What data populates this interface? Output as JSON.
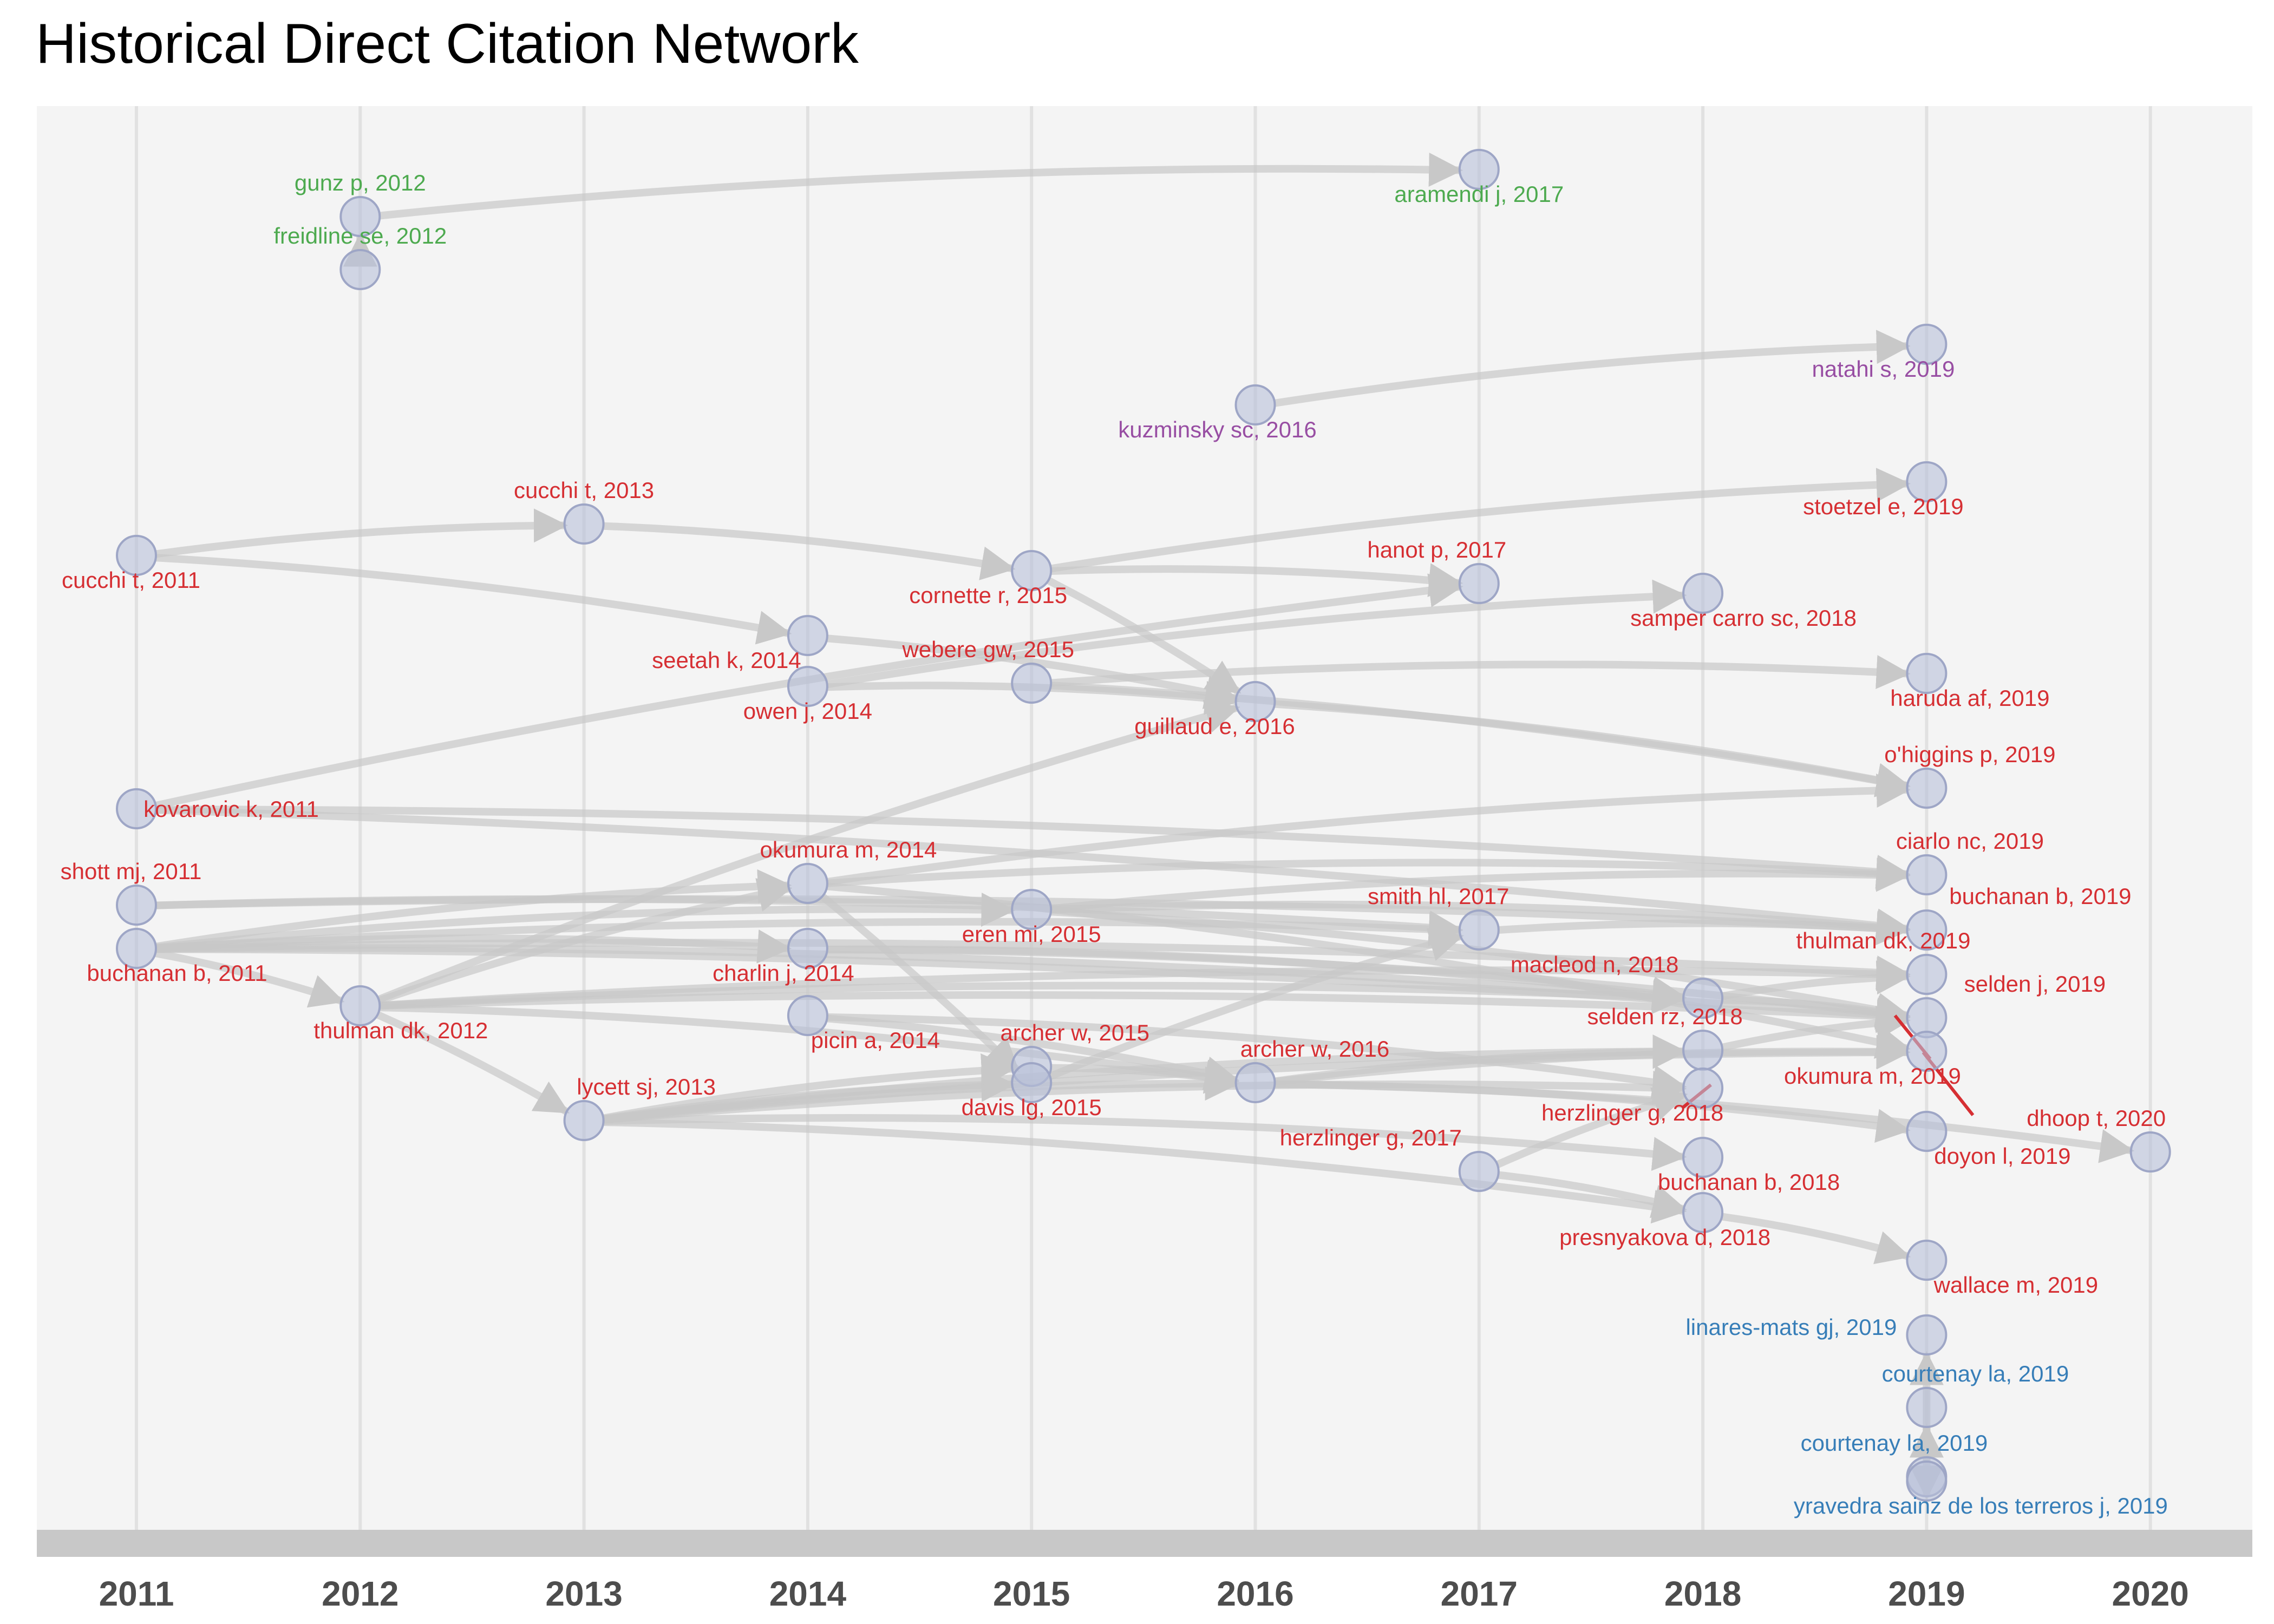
{
  "title": "Historical Direct Citation Network",
  "colors": {
    "background": "#f4f4f4",
    "gridline": "#e1e1e1",
    "timeline_bar": "#c8c8c8",
    "edge": "#c8c8c8",
    "node_fill": "#b8bfd9",
    "node_stroke": "#9ea6c6",
    "cluster_red": "#d62f33",
    "cluster_green": "#4daa4f",
    "cluster_purple": "#984ea3",
    "cluster_blue": "#377eb8"
  },
  "years": [
    "2011",
    "2012",
    "2013",
    "2014",
    "2015",
    "2016",
    "2017",
    "2018",
    "2019",
    "2020"
  ],
  "nodes": [
    {
      "id": "gunz2012",
      "label": "gunz p, 2012",
      "year": 2012,
      "cluster": "green"
    },
    {
      "id": "freidline2012",
      "label": "freidline se, 2012",
      "year": 2012,
      "cluster": "green"
    },
    {
      "id": "aramendi2017",
      "label": "aramendi j, 2017",
      "year": 2017,
      "cluster": "green"
    },
    {
      "id": "kuzminsky2016",
      "label": "kuzminsky sc, 2016",
      "year": 2016,
      "cluster": "purple"
    },
    {
      "id": "natahi2019",
      "label": "natahi s, 2019",
      "year": 2019,
      "cluster": "purple"
    },
    {
      "id": "cucchi2011",
      "label": "cucchi t, 2011",
      "year": 2011,
      "cluster": "red"
    },
    {
      "id": "cucchi2013",
      "label": "cucchi t, 2013",
      "year": 2013,
      "cluster": "red"
    },
    {
      "id": "stoetzel2019",
      "label": "stoetzel e, 2019",
      "year": 2019,
      "cluster": "red"
    },
    {
      "id": "cornette2015",
      "label": "cornette r, 2015",
      "year": 2015,
      "cluster": "red"
    },
    {
      "id": "hanot2017",
      "label": "hanot p, 2017",
      "year": 2017,
      "cluster": "red"
    },
    {
      "id": "samper2018",
      "label": "samper carro sc, 2018",
      "year": 2018,
      "cluster": "red"
    },
    {
      "id": "seetah2014",
      "label": "seetah k, 2014",
      "year": 2014,
      "cluster": "red"
    },
    {
      "id": "webere2015",
      "label": "webere gw, 2015",
      "year": 2015,
      "cluster": "red"
    },
    {
      "id": "owen2014",
      "label": "owen j, 2014",
      "year": 2014,
      "cluster": "red"
    },
    {
      "id": "guillaud2016",
      "label": "guillaud e, 2016",
      "year": 2016,
      "cluster": "red"
    },
    {
      "id": "haruda2019",
      "label": "haruda af, 2019",
      "year": 2019,
      "cluster": "red"
    },
    {
      "id": "ohiggins2019",
      "label": "o'higgins p, 2019",
      "year": 2019,
      "cluster": "red"
    },
    {
      "id": "kovarovic2011",
      "label": "kovarovic k, 2011",
      "year": 2011,
      "cluster": "red"
    },
    {
      "id": "ciarlo2019",
      "label": "ciarlo nc, 2019",
      "year": 2019,
      "cluster": "red"
    },
    {
      "id": "shott2011",
      "label": "shott mj, 2011",
      "year": 2011,
      "cluster": "red"
    },
    {
      "id": "okumura2014",
      "label": "okumura m, 2014",
      "year": 2014,
      "cluster": "red"
    },
    {
      "id": "buchanan2019",
      "label": "buchanan b, 2019",
      "year": 2019,
      "cluster": "red"
    },
    {
      "id": "smith2017",
      "label": "smith hl, 2017",
      "year": 2017,
      "cluster": "red"
    },
    {
      "id": "eren2015",
      "label": "eren mi, 2015",
      "year": 2015,
      "cluster": "red"
    },
    {
      "id": "buchanan2011",
      "label": "buchanan b, 2011",
      "year": 2011,
      "cluster": "red"
    },
    {
      "id": "charlin2014",
      "label": "charlin j, 2014",
      "year": 2014,
      "cluster": "red"
    },
    {
      "id": "thulmandk2019",
      "label": "thulman dk, 2019",
      "year": 2019,
      "cluster": "red"
    },
    {
      "id": "macleod2018",
      "label": "macleod n, 2018",
      "year": 2018,
      "cluster": "red"
    },
    {
      "id": "selden2019",
      "label": "selden j, 2019",
      "year": 2019,
      "cluster": "red"
    },
    {
      "id": "thulmandk2012",
      "label": "thulman dk, 2012",
      "year": 2012,
      "cluster": "red"
    },
    {
      "id": "picin2014",
      "label": "picin a, 2014",
      "year": 2014,
      "cluster": "red"
    },
    {
      "id": "archer2015",
      "label": "archer w, 2015",
      "year": 2015,
      "cluster": "red"
    },
    {
      "id": "seldenrz2018",
      "label": "selden rz, 2018",
      "year": 2018,
      "cluster": "red"
    },
    {
      "id": "archer2016",
      "label": "archer w, 2016",
      "year": 2016,
      "cluster": "red"
    },
    {
      "id": "okumura2019",
      "label": "okumura m, 2019",
      "year": 2019,
      "cluster": "red"
    },
    {
      "id": "lycett2013",
      "label": "lycett sj, 2013",
      "year": 2013,
      "cluster": "red"
    },
    {
      "id": "davis2015",
      "label": "davis lg, 2015",
      "year": 2015,
      "cluster": "red"
    },
    {
      "id": "herzlinger2018",
      "label": "herzlinger g, 2018",
      "year": 2018,
      "cluster": "red"
    },
    {
      "id": "doyon2019",
      "label": "doyon l, 2019",
      "year": 2019,
      "cluster": "red"
    },
    {
      "id": "dhoop2020",
      "label": "dhoop t, 2020",
      "year": 2020,
      "cluster": "red"
    },
    {
      "id": "herzlinger2017",
      "label": "herzlinger g, 2017",
      "year": 2017,
      "cluster": "red"
    },
    {
      "id": "buchanan2018",
      "label": "buchanan b, 2018",
      "year": 2018,
      "cluster": "red"
    },
    {
      "id": "presnyakova2018",
      "label": "presnyakova d, 2018",
      "year": 2018,
      "cluster": "red"
    },
    {
      "id": "wallace2019",
      "label": "wallace m, 2019",
      "year": 2019,
      "cluster": "red"
    },
    {
      "id": "linares2019",
      "label": "linares-mats gj, 2019",
      "year": 2019,
      "cluster": "blue"
    },
    {
      "id": "courtenay2019a",
      "label": "courtenay la, 2019",
      "year": 2019,
      "cluster": "blue"
    },
    {
      "id": "courtenay2019b",
      "label": "courtenay la, 2019",
      "year": 2019,
      "cluster": "blue"
    },
    {
      "id": "yravedra2019",
      "label": "yravedra sainz de los terreros j, 2019",
      "year": 2019,
      "cluster": "blue"
    }
  ],
  "edges": [
    [
      "gunz2012",
      "aramendi2017"
    ],
    [
      "freidline2012",
      "gunz2012"
    ],
    [
      "kuzminsky2016",
      "natahi2019"
    ],
    [
      "cucchi2011",
      "cucchi2013"
    ],
    [
      "cucchi2011",
      "seetah2014"
    ],
    [
      "cucchi2013",
      "cornette2015"
    ],
    [
      "cornette2015",
      "stoetzel2019"
    ],
    [
      "cornette2015",
      "hanot2017"
    ],
    [
      "cornette2015",
      "guillaud2016"
    ],
    [
      "seetah2014",
      "guillaud2016"
    ],
    [
      "owen2014",
      "guillaud2016"
    ],
    [
      "owen2014",
      "samper2018"
    ],
    [
      "webere2015",
      "haruda2019"
    ],
    [
      "webere2015",
      "ohiggins2019"
    ],
    [
      "guillaud2016",
      "ohiggins2019"
    ],
    [
      "kovarovic2011",
      "hanot2017"
    ],
    [
      "kovarovic2011",
      "ciarlo2019"
    ],
    [
      "kovarovic2011",
      "buchanan2019"
    ],
    [
      "shott2011",
      "smith2017"
    ],
    [
      "shott2011",
      "buchanan2019"
    ],
    [
      "buchanan2011",
      "thulmandk2012"
    ],
    [
      "buchanan2011",
      "eren2015"
    ],
    [
      "buchanan2011",
      "smith2017"
    ],
    [
      "buchanan2011",
      "macleod2018"
    ],
    [
      "buchanan2011",
      "thulmandk2019"
    ],
    [
      "buchanan2011",
      "okumura2014"
    ],
    [
      "buchanan2011",
      "selden2019"
    ],
    [
      "buchanan2011",
      "charlin2014"
    ],
    [
      "thulmandk2012",
      "okumura2014"
    ],
    [
      "thulmandk2012",
      "lycett2013"
    ],
    [
      "thulmandk2012",
      "thulmandk2019"
    ],
    [
      "thulmandk2012",
      "macleod2018"
    ],
    [
      "thulmandk2012",
      "selden2019"
    ],
    [
      "thulmandk2012",
      "guillaud2016"
    ],
    [
      "thulmandk2012",
      "archer2016"
    ],
    [
      "okumura2014",
      "ohiggins2019"
    ],
    [
      "okumura2014",
      "ciarlo2019"
    ],
    [
      "okumura2014",
      "davis2015"
    ],
    [
      "okumura2014",
      "okumura2019"
    ],
    [
      "eren2015",
      "buchanan2019"
    ],
    [
      "eren2015",
      "selden2019"
    ],
    [
      "eren2015",
      "ciarlo2019"
    ],
    [
      "charlin2014",
      "macleod2018"
    ],
    [
      "charlin2014",
      "selden2019"
    ],
    [
      "picin2014",
      "archer2016"
    ],
    [
      "picin2014",
      "herzlinger2018"
    ],
    [
      "lycett2013",
      "archer2015"
    ],
    [
      "lycett2013",
      "davis2015"
    ],
    [
      "lycett2013",
      "archer2016"
    ],
    [
      "lycett2013",
      "herzlinger2018"
    ],
    [
      "lycett2013",
      "buchanan2018"
    ],
    [
      "lycett2013",
      "presnyakova2018"
    ],
    [
      "lycett2013",
      "seldenrz2018"
    ],
    [
      "lycett2013",
      "okumura2019"
    ],
    [
      "archer2015",
      "archer2016"
    ],
    [
      "archer2016",
      "seldenrz2018"
    ],
    [
      "archer2016",
      "okumura2019"
    ],
    [
      "archer2016",
      "doyon2019"
    ],
    [
      "davis2015",
      "smith2017"
    ],
    [
      "smith2017",
      "buchanan2019"
    ],
    [
      "macleod2018",
      "thulmandk2019"
    ],
    [
      "macleod2018",
      "selden2019"
    ],
    [
      "herzlinger2017",
      "herzlinger2018"
    ],
    [
      "herzlinger2017",
      "presnyakova2018"
    ],
    [
      "presnyakova2018",
      "wallace2019"
    ],
    [
      "archer2016",
      "dhoop2020"
    ],
    [
      "seldenrz2018",
      "selden2019"
    ],
    [
      "courtenay2019b",
      "courtenay2019a"
    ],
    [
      "yravedra2019",
      "linares2019"
    ],
    [
      "yravedra2019",
      "courtenay2019a"
    ],
    [
      "yravedra2019",
      "courtenay2019b"
    ]
  ]
}
